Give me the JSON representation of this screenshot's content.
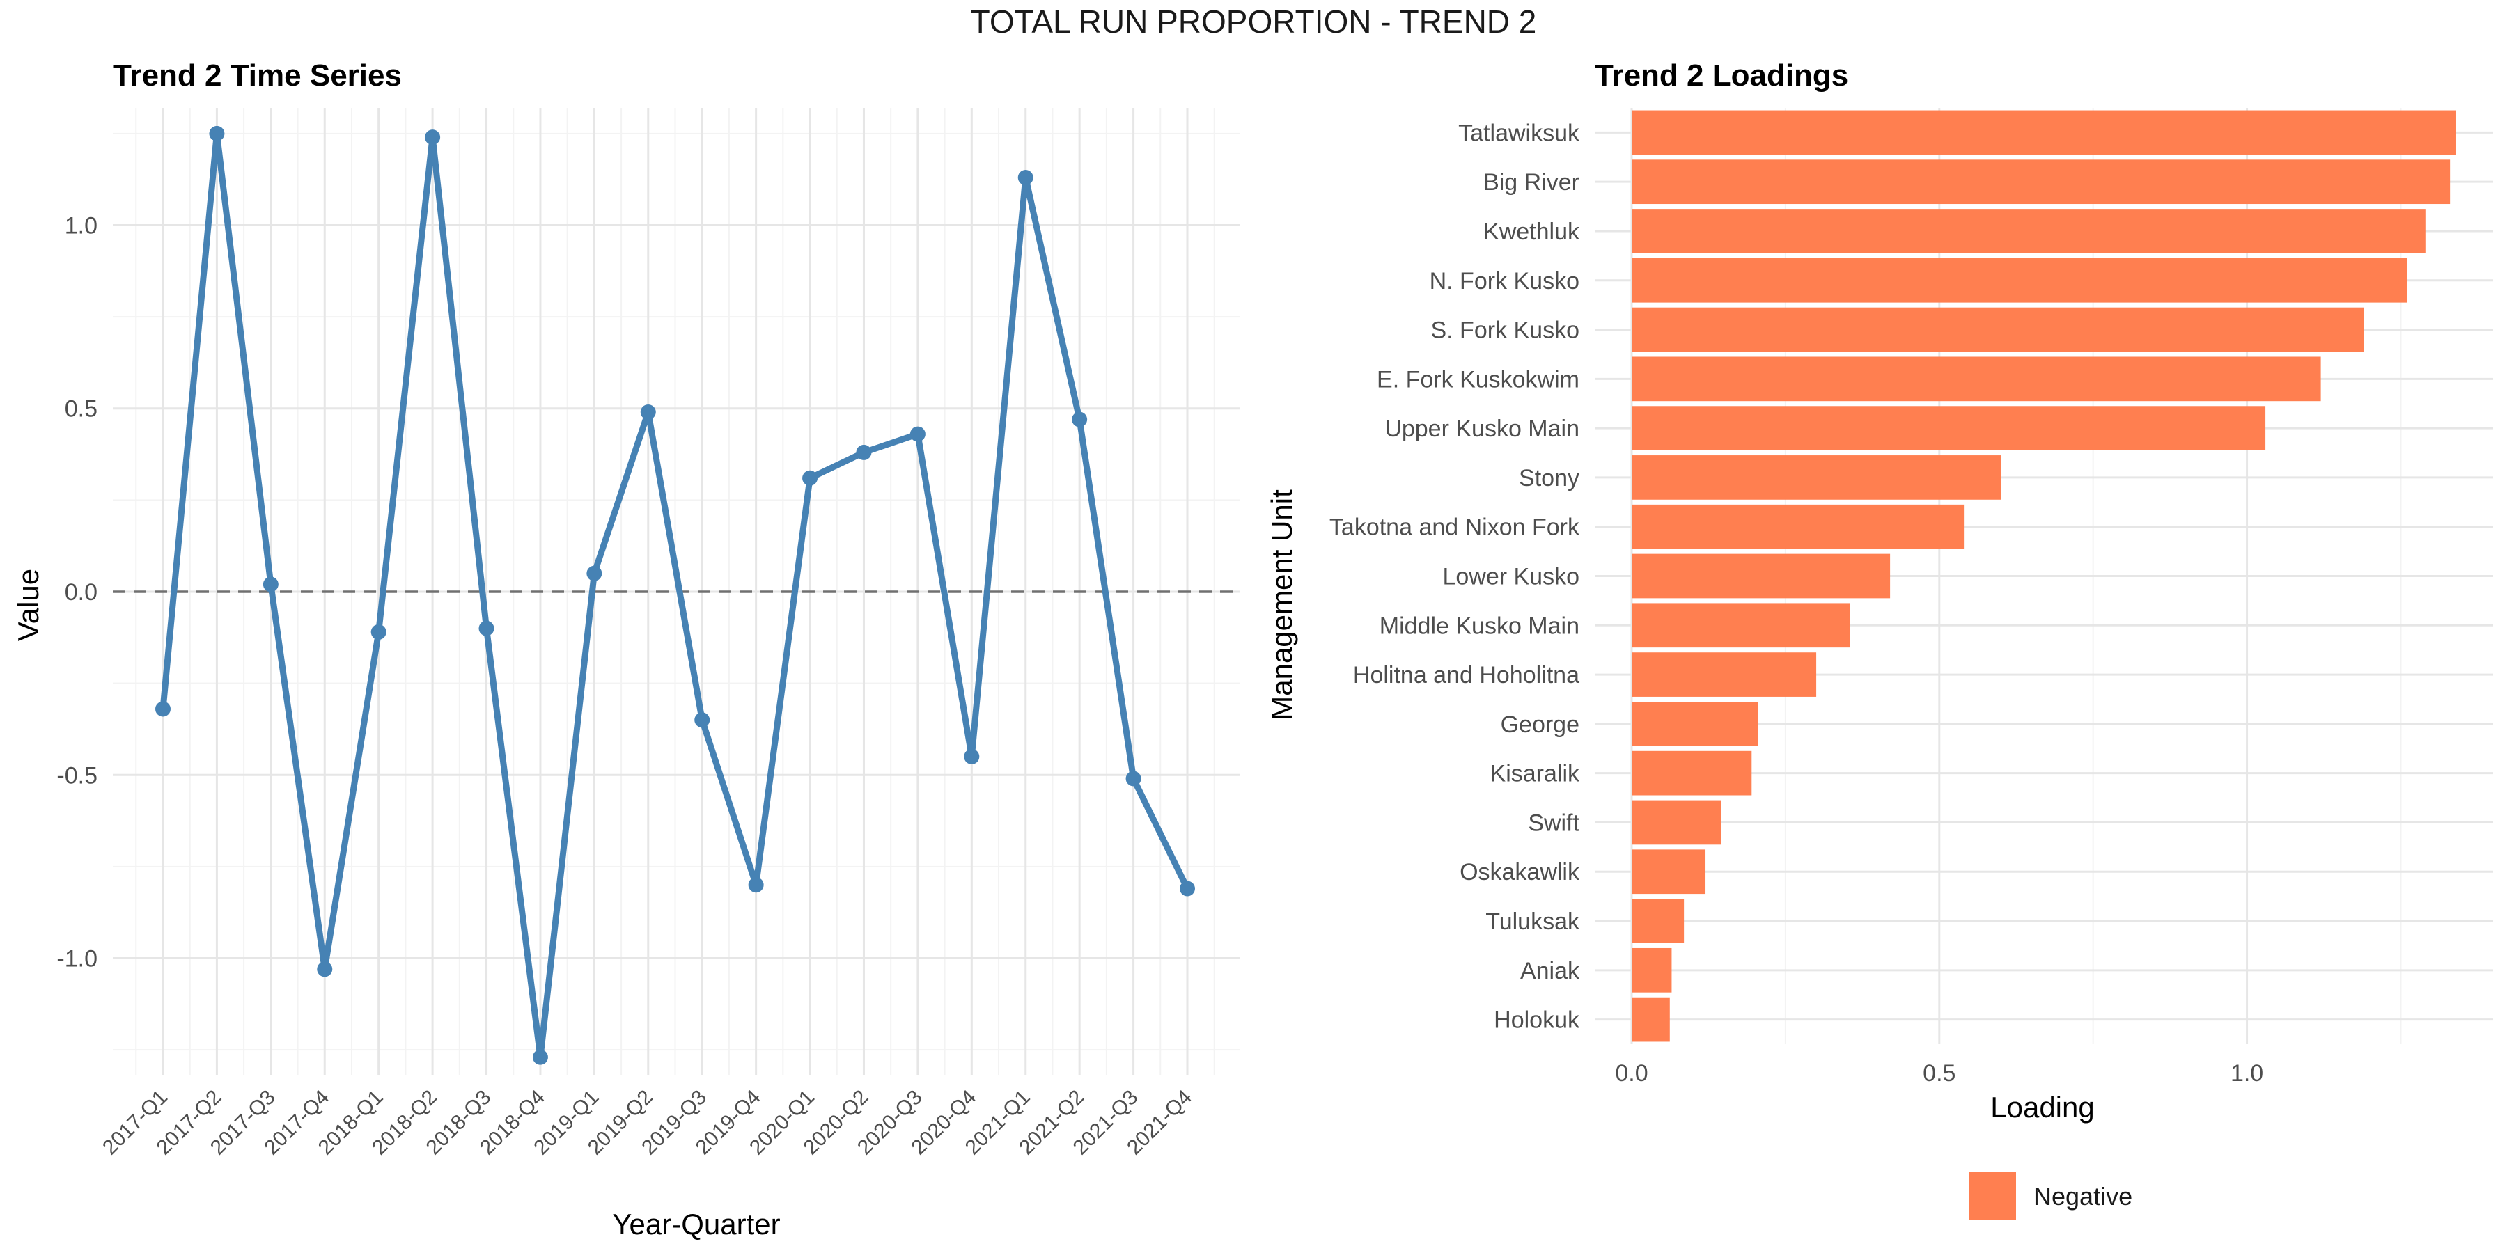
{
  "figure": {
    "title": "TOTAL RUN PROPORTION - TREND 2"
  },
  "chart_data": [
    {
      "type": "line",
      "title": "Trend 2 Time Series",
      "xlabel": "Year-Quarter",
      "ylabel": "Value",
      "categories": [
        "2017-Q1",
        "2017-Q2",
        "2017-Q3",
        "2017-Q4",
        "2018-Q1",
        "2018-Q2",
        "2018-Q3",
        "2018-Q4",
        "2019-Q1",
        "2019-Q2",
        "2019-Q3",
        "2019-Q4",
        "2020-Q1",
        "2020-Q2",
        "2020-Q3",
        "2020-Q4",
        "2021-Q1",
        "2021-Q2",
        "2021-Q3",
        "2021-Q4"
      ],
      "values": [
        -0.32,
        1.25,
        0.02,
        -1.03,
        -0.11,
        1.24,
        -0.1,
        -1.27,
        0.05,
        0.49,
        -0.35,
        -0.8,
        0.31,
        0.38,
        0.43,
        -0.45,
        1.13,
        0.47,
        -0.51,
        -0.81
      ],
      "ylim": [
        -1.32,
        1.32
      ],
      "yticks": [
        -1.0,
        -0.5,
        0.0,
        0.5,
        1.0
      ],
      "ytick_labels": [
        "-1.0",
        "-0.5",
        "0.0",
        "0.5",
        "1.0"
      ],
      "reference_line": 0,
      "line_color": "#4682B4",
      "grid": true
    },
    {
      "type": "bar",
      "orientation": "horizontal",
      "title": "Trend 2 Loadings",
      "xlabel": "Loading",
      "ylabel": "Management Unit",
      "categories": [
        "Tatlawiksuk",
        "Big River",
        "Kwethluk",
        "N. Fork Kusko",
        "S. Fork Kusko",
        "E. Fork Kuskokwim",
        "Upper Kusko Main",
        "Stony",
        "Takotna and Nixon Fork",
        "Lower Kusko",
        "Middle Kusko Main",
        "Holitna and Hoholitna",
        "George",
        "Kisaralik",
        "Swift",
        "Oskakawlik",
        "Tuluksak",
        "Aniak",
        "Holokuk"
      ],
      "values": [
        1.34,
        1.33,
        1.29,
        1.26,
        1.19,
        1.12,
        1.03,
        0.6,
        0.54,
        0.42,
        0.355,
        0.3,
        0.205,
        0.195,
        0.145,
        0.12,
        0.085,
        0.065,
        0.062
      ],
      "xlim": [
        -0.06,
        1.4
      ],
      "xticks": [
        0.0,
        0.5,
        1.0
      ],
      "xtick_labels": [
        "0.0",
        "0.5",
        "1.0"
      ],
      "bar_color": "#FF7F50",
      "legend": {
        "placement": "bottom",
        "entries": [
          {
            "label": "Negative",
            "color": "#FF7F50"
          }
        ]
      },
      "grid": true
    }
  ]
}
